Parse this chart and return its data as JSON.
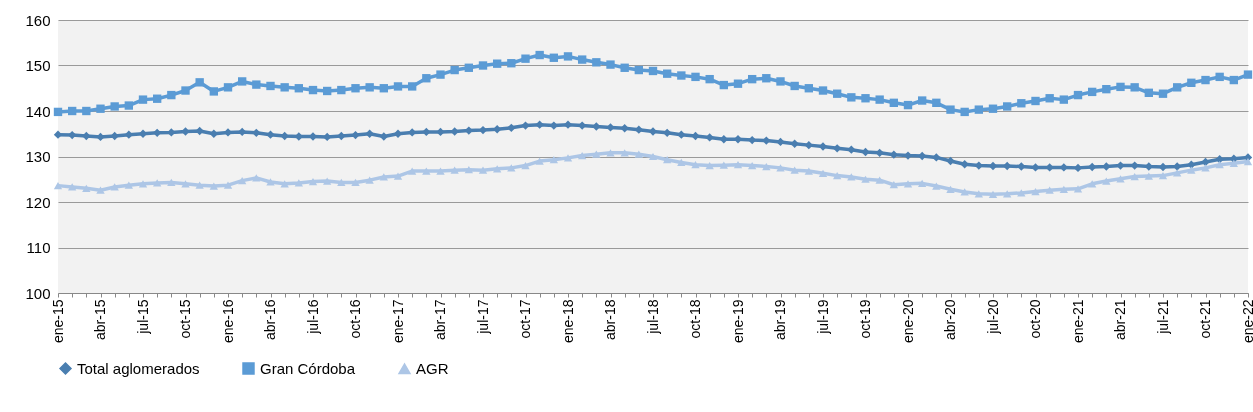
{
  "chart_data": {
    "type": "line",
    "categories": [
      "ene-15",
      null,
      null,
      "abr-15",
      null,
      null,
      "jul-15",
      null,
      null,
      "oct-15",
      null,
      null,
      "ene-16",
      null,
      null,
      "abr-16",
      null,
      null,
      "jul-16",
      null,
      null,
      "oct-16",
      null,
      null,
      "ene-17",
      null,
      null,
      "abr-17",
      null,
      null,
      "jul-17",
      null,
      null,
      "oct-17",
      null,
      null,
      "ene-18",
      null,
      null,
      "abr-18",
      null,
      null,
      "jul-18",
      null,
      null,
      "oct-18",
      null,
      null,
      "ene-19",
      null,
      null,
      "abr-19",
      null,
      null,
      "jul-19",
      null,
      null,
      "oct-19",
      null,
      null,
      "ene-20",
      null,
      null,
      "abr-20",
      null,
      null,
      "jul-20",
      null,
      null,
      "oct-20",
      null,
      null,
      "ene-21",
      null,
      null,
      "abr-21",
      null,
      null,
      "jul-21",
      null,
      null,
      "oct-21",
      null,
      null,
      "ene-22"
    ],
    "series": [
      {
        "name": "Total aglomerados",
        "color": "#4a7eb0",
        "marker": "diamond",
        "values": [
          134.8,
          134.7,
          134.5,
          134.3,
          134.5,
          134.8,
          135,
          135.2,
          135.3,
          135.5,
          135.6,
          135,
          135.3,
          135.4,
          135.2,
          134.8,
          134.5,
          134.4,
          134.4,
          134.3,
          134.5,
          134.7,
          135,
          134.4,
          135,
          135.3,
          135.4,
          135.4,
          135.5,
          135.7,
          135.8,
          136,
          136.3,
          136.8,
          137,
          136.8,
          137,
          136.8,
          136.6,
          136.4,
          136.2,
          135.9,
          135.5,
          135.2,
          134.8,
          134.5,
          134.2,
          133.8,
          133.8,
          133.6,
          133.5,
          133.2,
          132.8,
          132.5,
          132.2,
          131.8,
          131.5,
          131,
          130.8,
          130.4,
          130.2,
          130.1,
          129.8,
          129,
          128.3,
          128,
          127.9,
          127.9,
          127.8,
          127.6,
          127.6,
          127.6,
          127.5,
          127.7,
          127.8,
          128,
          128,
          127.8,
          127.7,
          127.8,
          128.2,
          128.8,
          129.4,
          129.5,
          129.8
        ]
      },
      {
        "name": "Gran Córdoba",
        "color": "#5b9bd5",
        "marker": "square",
        "values": [
          139.8,
          140,
          140,
          140.5,
          141,
          141.2,
          142.5,
          142.7,
          143.5,
          144.5,
          146.3,
          144.3,
          145.2,
          146.5,
          145.8,
          145.5,
          145.2,
          145,
          144.6,
          144.4,
          144.6,
          145,
          145.2,
          145,
          145.4,
          145.4,
          147.2,
          148,
          149,
          149.5,
          150,
          150.4,
          150.5,
          151.5,
          152.3,
          151.7,
          152,
          151.3,
          150.7,
          150.2,
          149.5,
          149,
          148.8,
          148.2,
          147.8,
          147.5,
          147,
          145.7,
          146,
          147,
          147.2,
          146.5,
          145.5,
          145,
          144.5,
          143.8,
          143,
          142.8,
          142.5,
          141.8,
          141.3,
          142.3,
          141.8,
          140.3,
          139.8,
          140.3,
          140.5,
          141,
          141.7,
          142.2,
          142.8,
          142.5,
          143.5,
          144.2,
          144.8,
          145.3,
          145.2,
          144,
          143.8,
          145.2,
          146.2,
          146.8,
          147.5,
          146.8,
          148
        ]
      },
      {
        "name": "AGR",
        "color": "#adc6e6",
        "marker": "triangle",
        "values": [
          123.6,
          123.3,
          123,
          122.6,
          123.3,
          123.7,
          124,
          124.2,
          124.3,
          124,
          123.7,
          123.5,
          123.7,
          124.7,
          125.3,
          124.4,
          124,
          124.2,
          124.5,
          124.6,
          124.3,
          124.3,
          124.8,
          125.5,
          125.7,
          126.8,
          126.8,
          126.8,
          127,
          127.1,
          127,
          127.3,
          127.5,
          128,
          129,
          129.3,
          129.7,
          130.2,
          130.5,
          130.8,
          130.8,
          130.5,
          130,
          129.3,
          128.7,
          128.2,
          128,
          128.1,
          128.2,
          128,
          127.8,
          127.5,
          127,
          126.8,
          126.3,
          125.8,
          125.5,
          125,
          124.8,
          123.8,
          124,
          124.1,
          123.5,
          122.8,
          122.2,
          121.8,
          121.7,
          121.8,
          122,
          122.3,
          122.6,
          122.8,
          122.9,
          124,
          124.6,
          125.1,
          125.6,
          125.7,
          125.8,
          126.4,
          127,
          127.5,
          128.2,
          128.5,
          128.9
        ]
      }
    ],
    "ylim": [
      100,
      160
    ],
    "yticks": [
      100,
      110,
      120,
      130,
      140,
      150,
      160
    ],
    "grid": "y",
    "legend": "bottom",
    "line_style": "solid"
  }
}
